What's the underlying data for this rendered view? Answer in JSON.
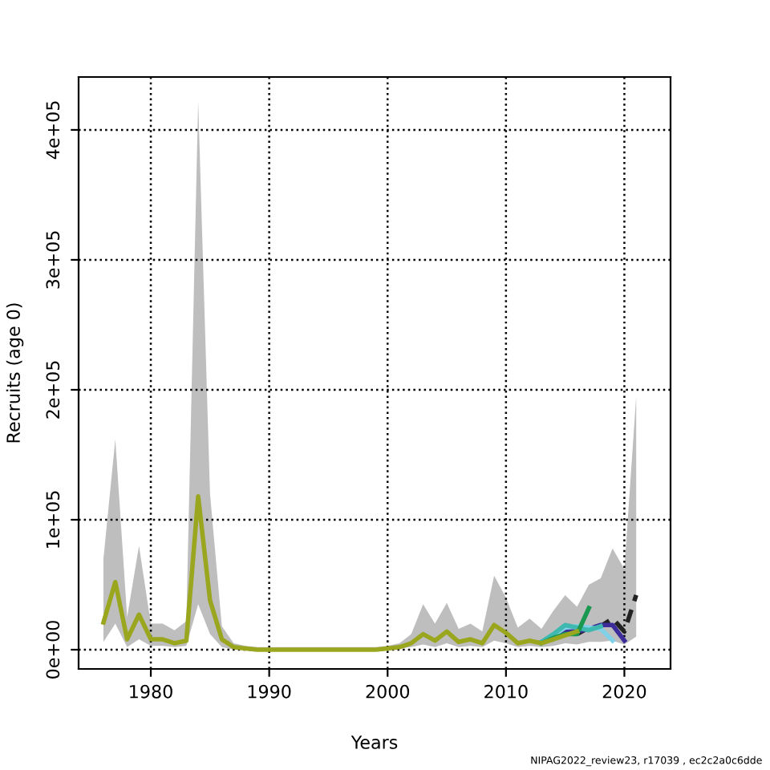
{
  "chart_data": {
    "type": "line",
    "xlabel": "Years",
    "ylabel": "Recruits (age 0)",
    "annotations": [
      "NIPAG2022_review23, r17039 , ec2c2a0c6dde"
    ],
    "xlim": [
      1973.9,
      2023.9
    ],
    "xticks": [
      1980,
      1990,
      2000,
      2010,
      2020
    ],
    "ylim": [
      -14800,
      440700
    ],
    "yticks": [
      {
        "value": 0,
        "label": "0e+00"
      },
      {
        "value": 100000,
        "label": "1e+05"
      },
      {
        "value": 200000,
        "label": "2e+05"
      },
      {
        "value": 300000,
        "label": "3e+05"
      },
      {
        "value": 400000,
        "label": "4e+05"
      }
    ],
    "grid": true,
    "series": [
      {
        "color": "#222222",
        "line_style": "dashed",
        "x": [
          1976,
          1977,
          1978,
          1979,
          1980,
          1981,
          1982,
          1983,
          1984,
          1985,
          1986,
          1987,
          1988,
          1989,
          1990,
          1991,
          1992,
          1993,
          1994,
          1995,
          1996,
          1997,
          1998,
          1999,
          2000,
          2001,
          2002,
          2003,
          2004,
          2005,
          2006,
          2007,
          2008,
          2009,
          2010,
          2011,
          2012,
          2013,
          2014,
          2015,
          2016,
          2017,
          2018,
          2019,
          2020,
          2021
        ],
        "values": [
          null,
          null,
          null,
          null,
          null,
          null,
          null,
          null,
          null,
          null,
          null,
          null,
          null,
          null,
          null,
          null,
          null,
          null,
          null,
          null,
          null,
          null,
          null,
          null,
          null,
          null,
          null,
          null,
          null,
          null,
          null,
          null,
          null,
          null,
          null,
          null,
          null,
          null,
          null,
          null,
          12000,
          17000,
          18000,
          24000,
          14000,
          42000
        ],
        "lower": [
          6000,
          20000,
          2000,
          8000,
          3000,
          3000,
          2000,
          3000,
          35000,
          12000,
          2000,
          0,
          0,
          0,
          0,
          0,
          0,
          0,
          0,
          0,
          0,
          0,
          0,
          0,
          0,
          1000,
          2000,
          4000,
          2000,
          5000,
          2000,
          3000,
          2000,
          7000,
          5000,
          2000,
          3000,
          2000,
          3000,
          5000,
          4000,
          6000,
          6000,
          7000,
          4000,
          10000
        ],
        "upper": [
          70000,
          162000,
          25000,
          80000,
          20000,
          20000,
          15000,
          22000,
          422000,
          120000,
          18000,
          5000,
          3000,
          2000,
          2000,
          2000,
          2000,
          2000,
          2000,
          2000,
          2000,
          2000,
          2000,
          2000,
          3000,
          5000,
          12000,
          35000,
          20000,
          36000,
          16000,
          20000,
          14000,
          57000,
          40000,
          17000,
          24000,
          16000,
          30000,
          42000,
          33000,
          50000,
          55000,
          78000,
          62000,
          195000
        ]
      },
      {
        "color": "#3b2c9a",
        "x": [
          2013,
          2014,
          2015,
          2016,
          2017,
          2018,
          2019,
          2020
        ],
        "values": [
          6000,
          10000,
          14000,
          14000,
          16000,
          19000,
          19000,
          7000
        ]
      },
      {
        "color": "#7fd1e8",
        "x": [
          2013,
          2014,
          2015,
          2016,
          2017,
          2018,
          2019
        ],
        "values": [
          6000,
          11000,
          17000,
          18000,
          17000,
          16000,
          7000
        ]
      },
      {
        "color": "#3fb8af",
        "x": [
          2013,
          2014,
          2015,
          2016,
          2017,
          2018
        ],
        "values": [
          6000,
          12000,
          19000,
          17000,
          15000,
          18000
        ]
      },
      {
        "color": "#1a9850",
        "x": [
          2013,
          2014,
          2015,
          2016,
          2017
        ],
        "values": [
          5000,
          9000,
          12000,
          12000,
          32000
        ]
      },
      {
        "color": "#9aa61e",
        "x": [
          1976,
          1977,
          1978,
          1979,
          1980,
          1981,
          1982,
          1983,
          1984,
          1985,
          1986,
          1987,
          1988,
          1989,
          1990,
          1991,
          1992,
          1993,
          1994,
          1995,
          1996,
          1997,
          1998,
          1999,
          2000,
          2001,
          2002,
          2003,
          2004,
          2005,
          2006,
          2007,
          2008,
          2009,
          2010,
          2011,
          2012,
          2013,
          2014,
          2015,
          2016
        ],
        "values": [
          21000,
          52000,
          8000,
          27000,
          8000,
          8000,
          5000,
          7000,
          118000,
          38000,
          8000,
          2000,
          1000,
          0,
          0,
          0,
          0,
          0,
          0,
          0,
          0,
          0,
          0,
          0,
          1000,
          2000,
          5000,
          12000,
          7000,
          14000,
          6000,
          8000,
          5000,
          19000,
          13000,
          5000,
          7000,
          5000,
          8000,
          11000,
          14000
        ]
      }
    ]
  }
}
